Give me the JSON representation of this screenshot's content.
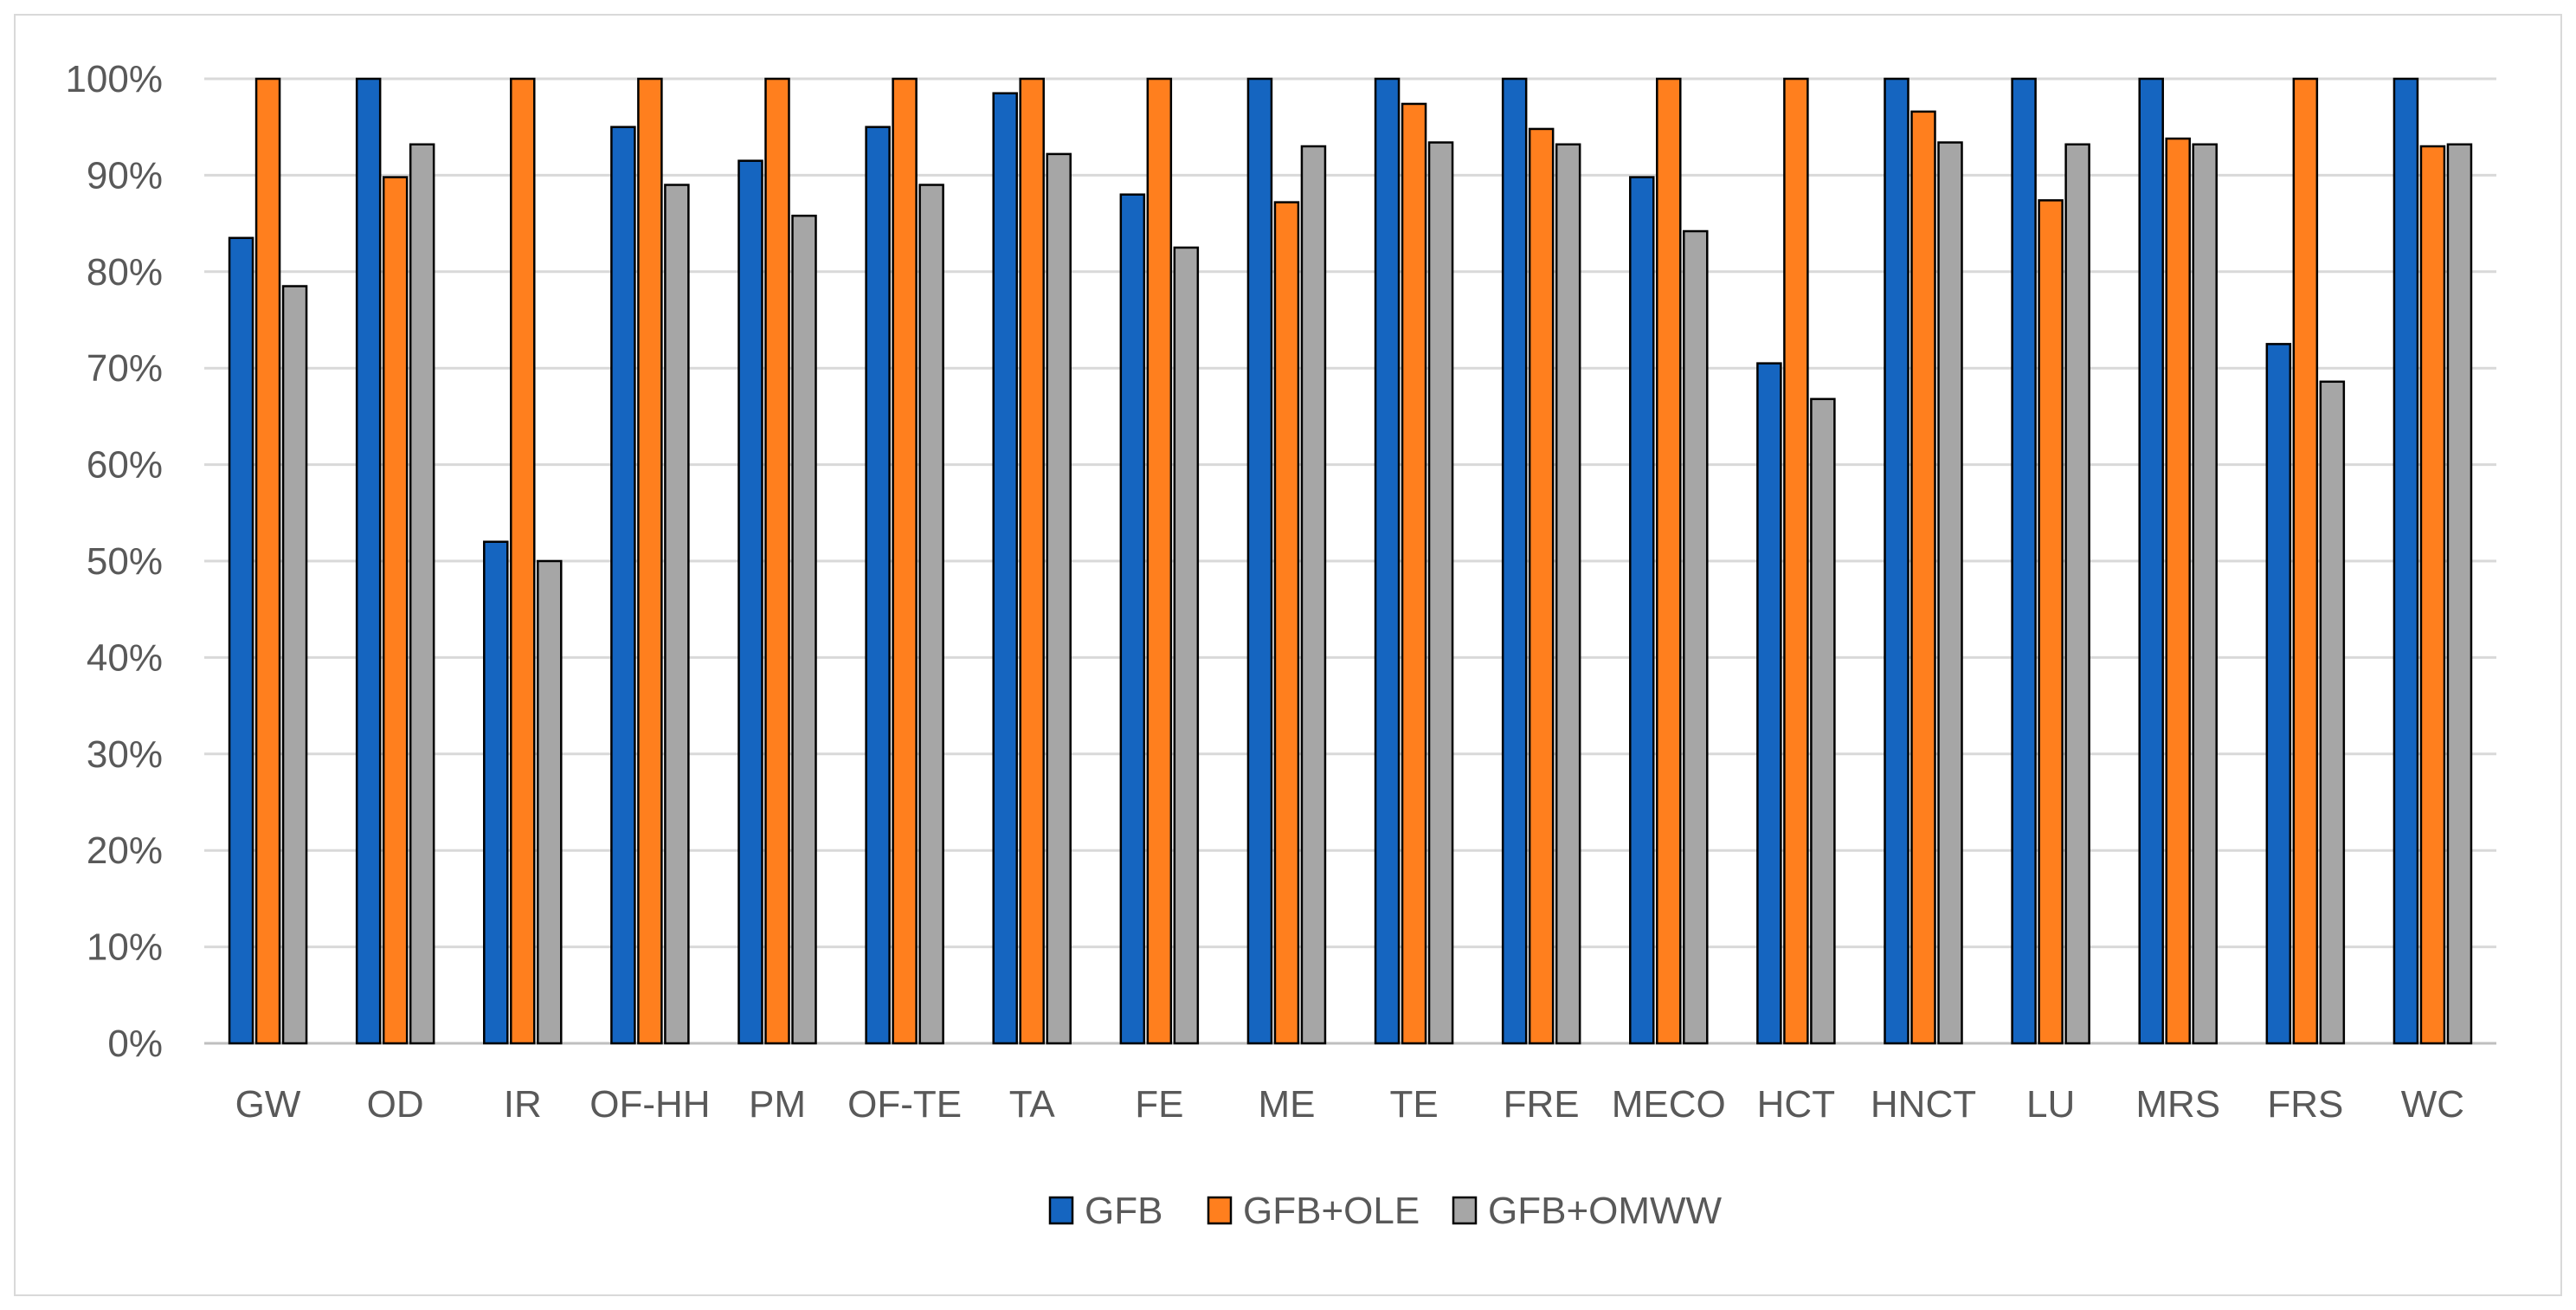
{
  "chart_data": {
    "type": "bar",
    "title": "",
    "xlabel": "",
    "ylabel": "",
    "ylim": [
      0,
      100
    ],
    "y_ticks": [
      "0%",
      "10%",
      "20%",
      "30%",
      "40%",
      "50%",
      "60%",
      "70%",
      "80%",
      "90%",
      "100%"
    ],
    "grid": true,
    "legend_position": "bottom",
    "categories": [
      "GW",
      "OD",
      "IR",
      "OF-HH",
      "PM",
      "OF-TE",
      "TA",
      "FE",
      "ME",
      "TE",
      "FRE",
      "MECO",
      "HCT",
      "HNCT",
      "LU",
      "MRS",
      "FRS",
      "WC"
    ],
    "series": [
      {
        "name": "GFB",
        "color": "#1565c0",
        "values": [
          83.5,
          100,
          52,
          95,
          91.5,
          95,
          98.5,
          88,
          100,
          100,
          100,
          89.8,
          70.5,
          100,
          100,
          100,
          72.5,
          100
        ]
      },
      {
        "name": "GFB+OLE",
        "color": "#ff7f1e",
        "values": [
          100,
          89.8,
          100,
          100,
          100,
          100,
          100,
          100,
          87.2,
          97.4,
          94.8,
          100,
          100,
          96.6,
          87.4,
          93.8,
          100,
          93
        ]
      },
      {
        "name": "GFB+OMWW",
        "color": "#a6a6a6",
        "values": [
          78.5,
          93.2,
          50,
          89,
          85.8,
          89,
          92.2,
          82.5,
          93,
          93.4,
          93.2,
          84.2,
          66.8,
          93.4,
          93.2,
          93.2,
          68.6,
          93.2
        ]
      }
    ]
  }
}
